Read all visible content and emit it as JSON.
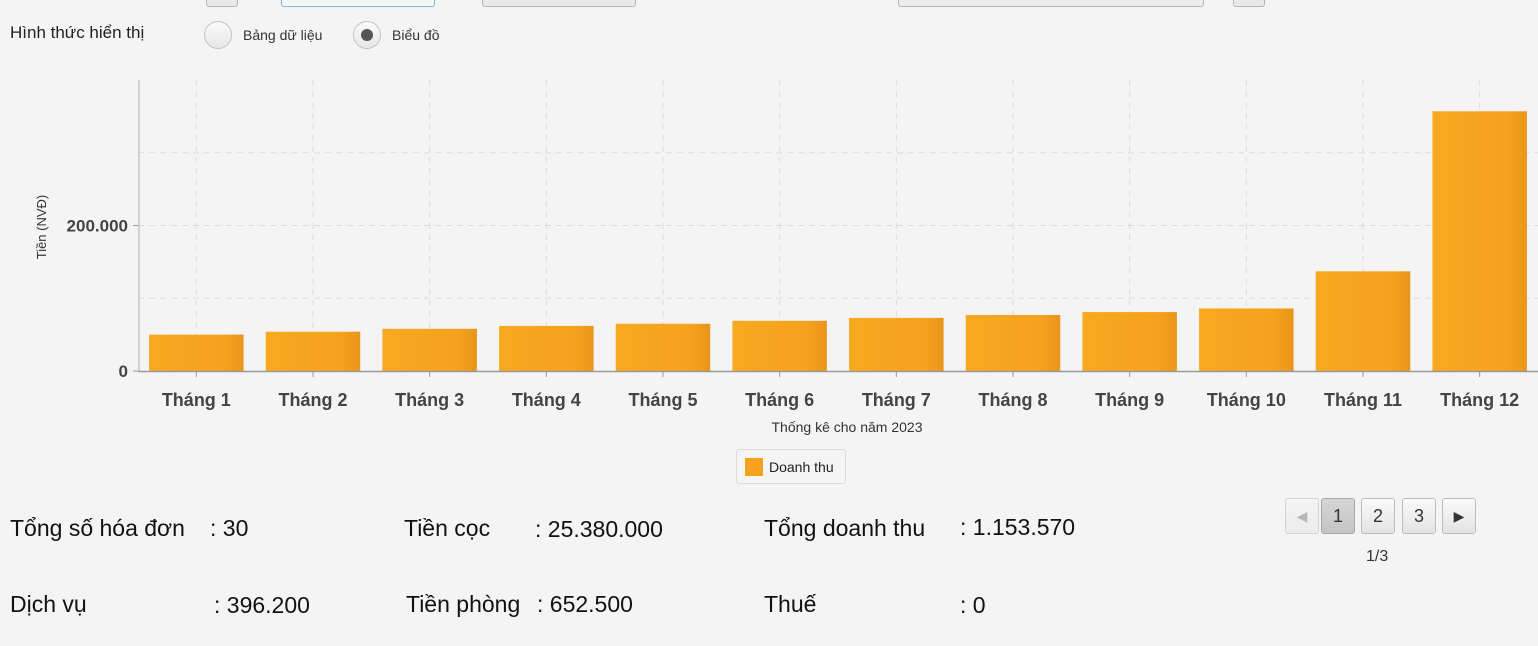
{
  "display_mode": {
    "label": "Hình thức hiển thị",
    "options": [
      {
        "label": "Bảng dữ liệu",
        "selected": false
      },
      {
        "label": "Biểu đồ",
        "selected": true
      }
    ]
  },
  "chart_data": {
    "type": "bar",
    "categories": [
      "Tháng 1",
      "Tháng 2",
      "Tháng 3",
      "Tháng 4",
      "Tháng 5",
      "Tháng 6",
      "Tháng 7",
      "Tháng 8",
      "Tháng 9",
      "Tháng 10",
      "Tháng 11",
      "Tháng 12"
    ],
    "series": [
      {
        "name": "Doanh thu",
        "color": "#f6a21e",
        "values": [
          50000,
          54000,
          58000,
          62000,
          65000,
          69000,
          73000,
          77000,
          81000,
          86000,
          137000,
          357000
        ]
      }
    ],
    "xlabel": "Thống kê cho năm 2023",
    "ylabel": "Tiền (NVĐ)",
    "ylim": [
      0,
      400000
    ],
    "ytick_labels": [
      {
        "value": 0,
        "label": "0"
      },
      {
        "value": 200000,
        "label": "200.000"
      }
    ],
    "grid": true,
    "legend_position": "bottom"
  },
  "summary": {
    "invoice_count_label": "Tổng số hóa đơn",
    "invoice_count_value": ": 30",
    "deposit_label": "Tiền cọc",
    "deposit_value": ": 25.380.000",
    "total_revenue_label": "Tổng doanh thu",
    "total_revenue_value": ": 1.153.570",
    "service_label": "Dịch vụ",
    "service_value": ": 396.200",
    "room_label": "Tiền phòng",
    "room_value": ": 652.500",
    "tax_label": "Thuế",
    "tax_value": ": 0"
  },
  "pagination": {
    "prev_icon": "◀",
    "next_icon": "▶",
    "pages": [
      "1",
      "2",
      "3"
    ],
    "current": "1",
    "info": "1/3"
  }
}
